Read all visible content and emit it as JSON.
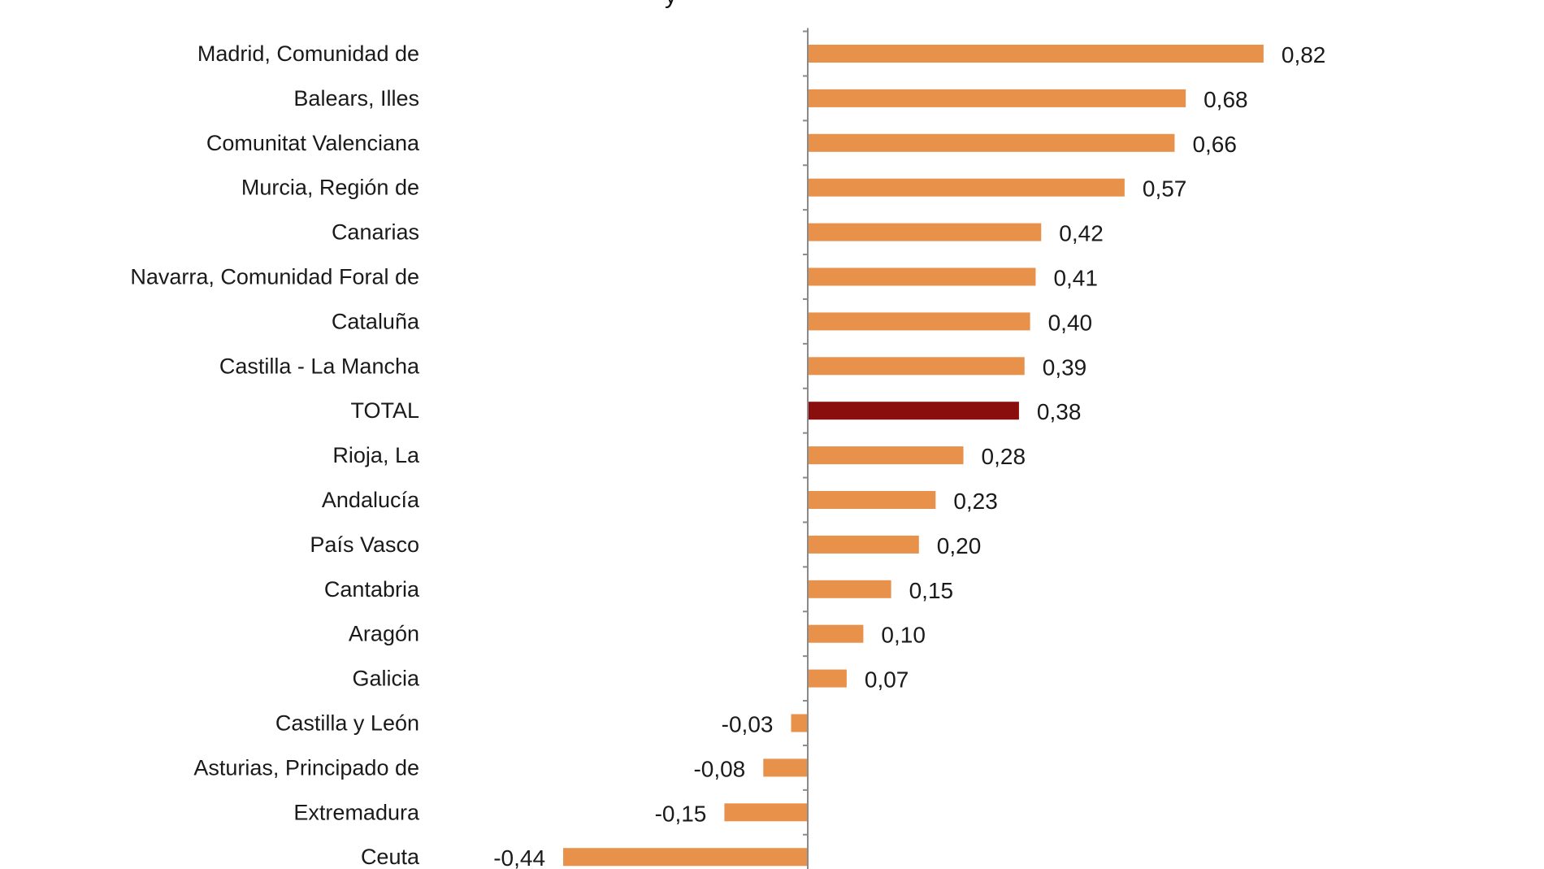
{
  "chart_data": {
    "type": "bar",
    "orientation": "horizontal",
    "title": "",
    "xlabel": "",
    "ylabel": "",
    "grid": false,
    "legend": "none",
    "xlim": [
      -0.44,
      0.82
    ],
    "categories": [
      "Madrid, Comunidad de",
      "Balears, Illes",
      "Comunitat Valenciana",
      "Murcia, Región de",
      "Canarias",
      "Navarra, Comunidad Foral de",
      "Cataluña",
      "Castilla - La Mancha",
      "TOTAL",
      "Rioja, La",
      "Andalucía",
      "País Vasco",
      "Cantabria",
      "Aragón",
      "Galicia",
      "Castilla y León",
      "Asturias, Principado de",
      "Extremadura",
      "Ceuta"
    ],
    "values": [
      0.82,
      0.68,
      0.66,
      0.57,
      0.42,
      0.41,
      0.4,
      0.39,
      0.38,
      0.28,
      0.23,
      0.2,
      0.15,
      0.1,
      0.07,
      -0.03,
      -0.08,
      -0.15,
      -0.44
    ],
    "value_labels": [
      "0,82",
      "0,68",
      "0,66",
      "0,57",
      "0,42",
      "0,41",
      "0,40",
      "0,39",
      "0,38",
      "0,28",
      "0,23",
      "0,20",
      "0,15",
      "0,10",
      "0,07",
      "-0,03",
      "-0,08",
      "-0,15",
      "-0,44"
    ],
    "highlight_category": "TOTAL",
    "colors": {
      "bar": "#E8914A",
      "highlight": "#8B0E0E",
      "axis": "#8a8a8a",
      "text": "#1a1a1a"
    },
    "title_fragment": "y"
  }
}
